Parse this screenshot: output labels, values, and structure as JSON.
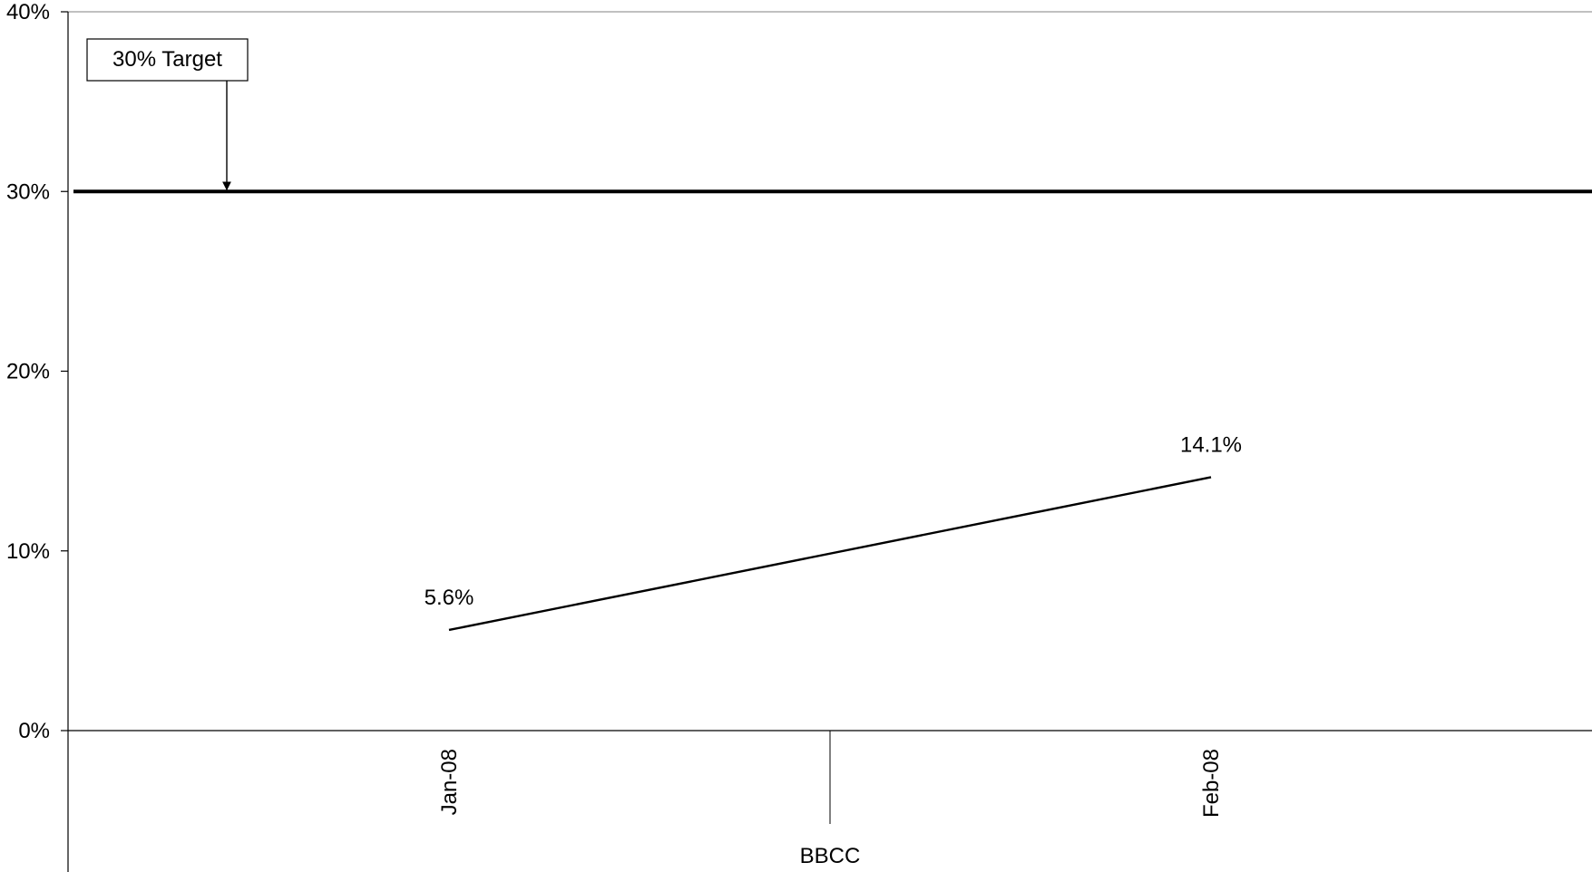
{
  "chart_data": {
    "type": "line",
    "title": "",
    "xlabel": "",
    "ylabel": "",
    "categories": [
      "Jan-08",
      "Feb-08"
    ],
    "group_label": "BBCC",
    "series": [
      {
        "values": [
          5.6,
          14.1
        ],
        "data_labels": [
          "5.6%",
          "14.1%"
        ],
        "color": "#000000"
      }
    ],
    "y_axis": {
      "min": 0,
      "max": 40,
      "major_unit": 10,
      "tick_labels": [
        "0%",
        "10%",
        "20%",
        "30%",
        "40%"
      ],
      "gridlines": false
    },
    "target": {
      "value": 30,
      "label": "30% Target",
      "color": "#000000"
    },
    "legend": "none"
  }
}
